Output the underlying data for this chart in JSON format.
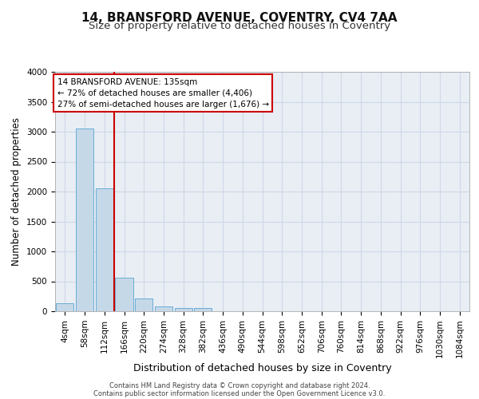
{
  "title1": "14, BRANSFORD AVENUE, COVENTRY, CV4 7AA",
  "title2": "Size of property relative to detached houses in Coventry",
  "xlabel": "Distribution of detached houses by size in Coventry",
  "ylabel": "Number of detached properties",
  "categories": [
    "4sqm",
    "58sqm",
    "112sqm",
    "166sqm",
    "220sqm",
    "274sqm",
    "328sqm",
    "382sqm",
    "436sqm",
    "490sqm",
    "544sqm",
    "598sqm",
    "652sqm",
    "706sqm",
    "760sqm",
    "814sqm",
    "868sqm",
    "922sqm",
    "976sqm",
    "1030sqm",
    "1084sqm"
  ],
  "values": [
    140,
    3050,
    2050,
    560,
    210,
    75,
    55,
    50,
    0,
    0,
    0,
    0,
    0,
    0,
    0,
    0,
    0,
    0,
    0,
    0,
    0
  ],
  "bar_color": "#c5d8e8",
  "bar_edge_color": "#6aaed6",
  "grid_color": "#d0d8e8",
  "background_color": "#e8eef4",
  "vline_x": 2.5,
  "vline_color": "#cc0000",
  "annotation_title": "14 BRANSFORD AVENUE: 135sqm",
  "annotation_line1": "← 72% of detached houses are smaller (4,406)",
  "annotation_line2": "27% of semi-detached houses are larger (1,676) →",
  "annotation_box_color": "#cc0000",
  "ylim": [
    0,
    4000
  ],
  "yticks": [
    0,
    500,
    1000,
    1500,
    2000,
    2500,
    3000,
    3500,
    4000
  ],
  "footer1": "Contains HM Land Registry data © Crown copyright and database right 2024.",
  "footer2": "Contains public sector information licensed under the Open Government Licence v3.0.",
  "title1_fontsize": 11,
  "title2_fontsize": 9.5,
  "tick_fontsize": 7.5,
  "ylabel_fontsize": 8.5,
  "xlabel_fontsize": 9,
  "annotation_fontsize": 7.5,
  "footer_fontsize": 6.0
}
